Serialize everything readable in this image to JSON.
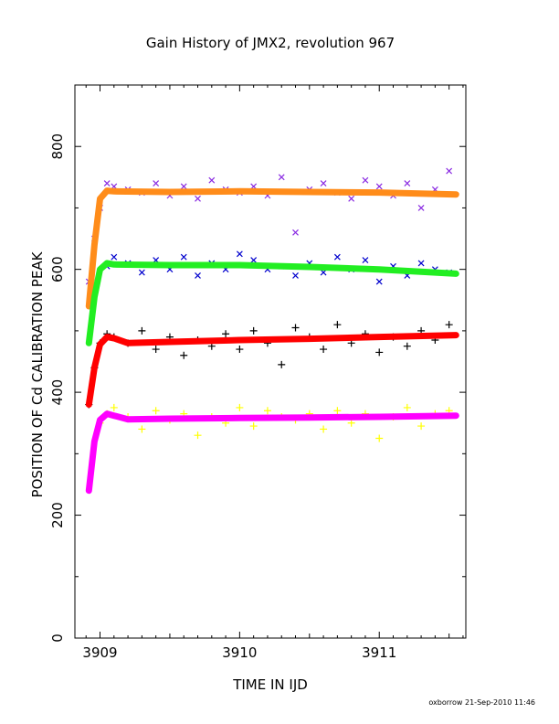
{
  "chart_data": {
    "type": "scatter",
    "title": "Gain History of JMX2, revolution 967",
    "xlabel": "TIME IN IJD",
    "ylabel": "POSITION OF Cd CALIBRATION PEAK",
    "xlim": [
      3908.82,
      3911.62
    ],
    "ylim": [
      0,
      900
    ],
    "xticks": [
      3909,
      3910,
      3911
    ],
    "yticks": [
      0,
      200,
      400,
      600,
      800
    ],
    "grid": false,
    "footnote": "oxborrow 21-Sep-2010 11:46",
    "series": [
      {
        "kind": "points",
        "marker": "x",
        "color": "#8a2be2",
        "x": [
          3908.92,
          3908.96,
          3909.0,
          3909.05,
          3909.1,
          3909.2,
          3909.3,
          3909.4,
          3909.5,
          3909.6,
          3909.7,
          3909.8,
          3909.9,
          3910.0,
          3910.1,
          3910.2,
          3910.3,
          3910.4,
          3910.5,
          3910.6,
          3910.7,
          3910.8,
          3910.9,
          3911.0,
          3911.1,
          3911.2,
          3911.3,
          3911.4,
          3911.5
        ],
        "y": [
          580,
          650,
          700,
          740,
          735,
          730,
          725,
          740,
          720,
          735,
          715,
          745,
          730,
          725,
          735,
          720,
          750,
          660,
          730,
          740,
          725,
          715,
          745,
          735,
          720,
          740,
          700,
          730,
          760
        ]
      },
      {
        "kind": "fit",
        "color": "#ff8c1a",
        "x": [
          3908.92,
          3908.96,
          3909.0,
          3909.05,
          3909.1,
          3909.5,
          3910.0,
          3910.5,
          3911.0,
          3911.55
        ],
        "y": [
          540,
          640,
          715,
          728,
          727,
          726,
          727,
          726,
          725,
          722
        ]
      },
      {
        "kind": "points",
        "marker": "x",
        "color": "#0000cd",
        "x": [
          3909.05,
          3909.1,
          3909.2,
          3909.3,
          3909.4,
          3909.5,
          3909.6,
          3909.7,
          3909.8,
          3909.9,
          3910.0,
          3910.1,
          3910.2,
          3910.3,
          3910.4,
          3910.5,
          3910.6,
          3910.7,
          3910.8,
          3910.9,
          3911.0,
          3911.1,
          3911.2,
          3911.3,
          3911.4,
          3911.5
        ],
        "y": [
          605,
          620,
          610,
          595,
          615,
          600,
          620,
          590,
          610,
          600,
          625,
          615,
          600,
          605,
          590,
          610,
          595,
          620,
          600,
          615,
          580,
          605,
          590,
          610,
          600,
          595
        ]
      },
      {
        "kind": "fit",
        "color": "#22ee22",
        "x": [
          3908.92,
          3908.96,
          3909.0,
          3909.05,
          3909.1,
          3909.5,
          3910.0,
          3910.5,
          3911.0,
          3911.55
        ],
        "y": [
          480,
          555,
          600,
          610,
          608,
          607,
          607,
          604,
          600,
          593
        ]
      },
      {
        "kind": "points",
        "marker": "+",
        "color": "#000000",
        "x": [
          3908.92,
          3908.96,
          3909.0,
          3909.05,
          3909.1,
          3909.2,
          3909.3,
          3909.4,
          3909.5,
          3909.6,
          3909.7,
          3909.8,
          3909.9,
          3910.0,
          3910.1,
          3910.2,
          3910.3,
          3910.4,
          3910.5,
          3910.6,
          3910.7,
          3910.8,
          3910.9,
          3911.0,
          3911.1,
          3911.2,
          3911.3,
          3911.4,
          3911.5
        ],
        "y": [
          380,
          440,
          480,
          495,
          490,
          480,
          500,
          470,
          490,
          460,
          485,
          475,
          495,
          470,
          500,
          480,
          445,
          505,
          490,
          470,
          510,
          480,
          495,
          465,
          490,
          475,
          500,
          485,
          510
        ]
      },
      {
        "kind": "fit",
        "color": "#ff0000",
        "x": [
          3908.92,
          3908.96,
          3909.0,
          3909.05,
          3909.1,
          3909.2,
          3909.5,
          3910.0,
          3910.5,
          3911.0,
          3911.55
        ],
        "y": [
          380,
          440,
          478,
          490,
          488,
          480,
          482,
          485,
          487,
          490,
          493
        ]
      },
      {
        "kind": "points",
        "marker": "+",
        "color": "#ffff00",
        "x": [
          3909.0,
          3909.05,
          3909.1,
          3909.2,
          3909.3,
          3909.4,
          3909.5,
          3909.6,
          3909.7,
          3909.8,
          3909.9,
          3910.0,
          3910.1,
          3910.2,
          3910.3,
          3910.4,
          3910.5,
          3910.6,
          3910.7,
          3910.8,
          3910.9,
          3911.0,
          3911.1,
          3911.2,
          3911.3,
          3911.4,
          3911.5
        ],
        "y": [
          350,
          365,
          375,
          360,
          340,
          370,
          355,
          365,
          330,
          360,
          350,
          375,
          345,
          370,
          360,
          355,
          365,
          340,
          370,
          350,
          365,
          325,
          360,
          375,
          345,
          365,
          370
        ]
      },
      {
        "kind": "fit",
        "color": "#ff00ff",
        "x": [
          3908.92,
          3908.96,
          3909.0,
          3909.05,
          3909.1,
          3909.2,
          3909.5,
          3910.0,
          3910.5,
          3911.0,
          3911.55
        ],
        "y": [
          240,
          320,
          355,
          365,
          362,
          356,
          357,
          358,
          359,
          360,
          362
        ]
      }
    ]
  }
}
